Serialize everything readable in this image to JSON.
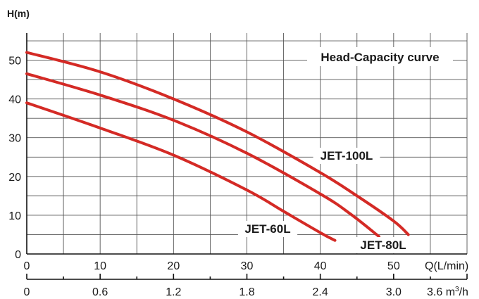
{
  "chart_data": {
    "type": "line",
    "title": "Head-Capacity curve",
    "ylabel": "H(m)",
    "xlabel": "Q(L/min)",
    "xlim": [
      0,
      60
    ],
    "ylim": [
      0,
      57
    ],
    "x_ticks": [
      "0",
      "10",
      "20",
      "30",
      "40",
      "50"
    ],
    "y_ticks": [
      "0",
      "10",
      "20",
      "30",
      "40",
      "50"
    ],
    "x2_ticks": [
      "0",
      "0.6",
      "1.2",
      "1.8",
      "2.4",
      "3.0"
    ],
    "x2_unit_prefix": "3.6 m",
    "x2_unit_sup": "3",
    "x2_unit_suffix": "/h",
    "grid": true,
    "line_color": "#d42a25",
    "series": [
      {
        "name": "JET-100L",
        "x": [
          0,
          10,
          20,
          30,
          40,
          45,
          50,
          52
        ],
        "y": [
          52,
          47,
          40,
          31.5,
          21,
          15,
          8.5,
          5
        ]
      },
      {
        "name": "JET-80L",
        "x": [
          0,
          10,
          20,
          30,
          40,
          44,
          48
        ],
        "y": [
          46.5,
          41,
          34.5,
          26,
          15.5,
          10.5,
          4.5
        ]
      },
      {
        "name": "JET-60L",
        "x": [
          0,
          10,
          20,
          30,
          35,
          40,
          42
        ],
        "y": [
          39,
          32.5,
          25.5,
          16.5,
          11,
          5.5,
          3.5
        ]
      }
    ]
  }
}
